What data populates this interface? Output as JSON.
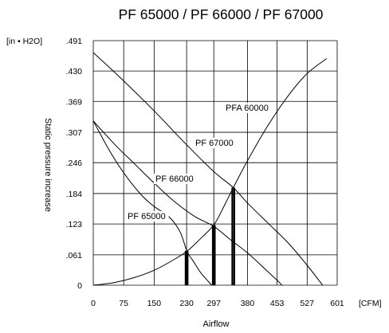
{
  "chart_data": {
    "type": "line",
    "title": "PF 65000 / PF 66000 / PF 67000",
    "xlabel": "Airflow",
    "ylabel": "Static pressure increase",
    "x_unit": "[CFM]",
    "y_unit": "[in • H2O]",
    "x_ticks": [
      "0",
      "75",
      "150",
      "230",
      "297",
      "380",
      "453",
      "527",
      "601"
    ],
    "x_tick_values": [
      0,
      75,
      150,
      230,
      297,
      380,
      453,
      527,
      601
    ],
    "y_ticks": [
      "0",
      ".061",
      ".123",
      ".184",
      ".246",
      ".307",
      ".369",
      ".430",
      ".491"
    ],
    "y_tick_values": [
      0,
      0.061,
      0.123,
      0.184,
      0.246,
      0.307,
      0.369,
      0.43,
      0.491
    ],
    "xlim": [
      0,
      601
    ],
    "ylim": [
      0,
      0.491
    ],
    "grid": true,
    "series": [
      {
        "name": "PF 65000",
        "points": [
          [
            0,
            0.33
          ],
          [
            40,
            0.27
          ],
          [
            80,
            0.22
          ],
          [
            120,
            0.18
          ],
          [
            150,
            0.158
          ],
          [
            180,
            0.142
          ],
          [
            200,
            0.125
          ],
          [
            215,
            0.105
          ],
          [
            225,
            0.082
          ],
          [
            232,
            0.066
          ],
          [
            245,
            0.05
          ],
          [
            265,
            0.025
          ],
          [
            283,
            0.008
          ],
          [
            292,
            0
          ]
        ]
      },
      {
        "name": "PF 66000",
        "points": [
          [
            0,
            0.33
          ],
          [
            50,
            0.285
          ],
          [
            100,
            0.245
          ],
          [
            150,
            0.205
          ],
          [
            200,
            0.168
          ],
          [
            250,
            0.138
          ],
          [
            297,
            0.118
          ],
          [
            340,
            0.09
          ],
          [
            380,
            0.065
          ],
          [
            420,
            0.035
          ],
          [
            453,
            0.01
          ],
          [
            465,
            0
          ]
        ]
      },
      {
        "name": "PF 67000",
        "points": [
          [
            0,
            0.467
          ],
          [
            75,
            0.41
          ],
          [
            150,
            0.35
          ],
          [
            230,
            0.282
          ],
          [
            297,
            0.228
          ],
          [
            345,
            0.196
          ],
          [
            380,
            0.165
          ],
          [
            430,
            0.125
          ],
          [
            480,
            0.085
          ],
          [
            527,
            0.04
          ],
          [
            565,
            0
          ]
        ]
      },
      {
        "name": "PFA 60000",
        "points": [
          [
            0,
            0
          ],
          [
            50,
            0.005
          ],
          [
            100,
            0.015
          ],
          [
            150,
            0.03
          ],
          [
            200,
            0.052
          ],
          [
            232,
            0.069
          ],
          [
            260,
            0.09
          ],
          [
            297,
            0.121
          ],
          [
            320,
            0.155
          ],
          [
            345,
            0.196
          ],
          [
            380,
            0.25
          ],
          [
            430,
            0.32
          ],
          [
            480,
            0.38
          ],
          [
            527,
            0.425
          ],
          [
            575,
            0.455
          ]
        ]
      }
    ],
    "operating_points": [
      {
        "x": 230,
        "y": 0.069
      },
      {
        "x": 297,
        "y": 0.121
      },
      {
        "x": 345,
        "y": 0.196
      }
    ]
  }
}
